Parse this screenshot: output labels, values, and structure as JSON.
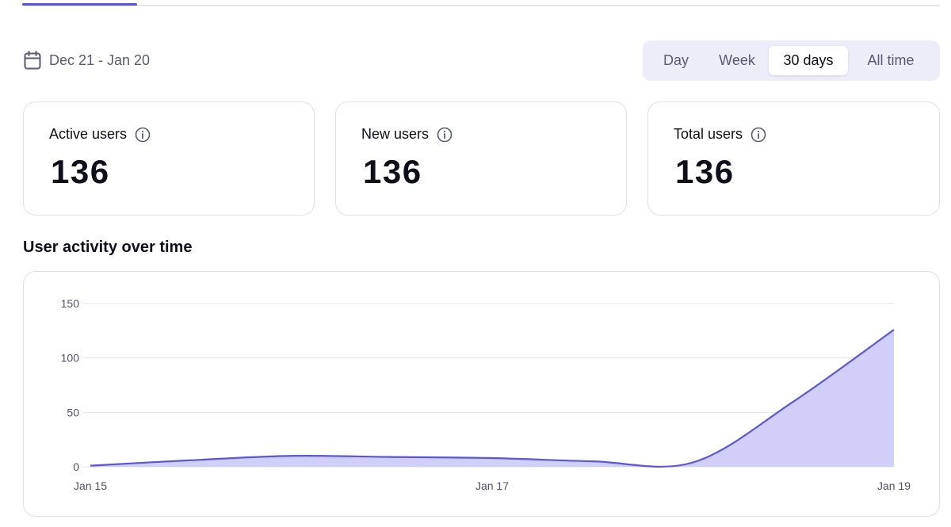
{
  "colors": {
    "accent": "#5b56d6",
    "area_fill": "#cfcffa",
    "gridline": "#e3e3ee",
    "card_border": "#e0e0ea"
  },
  "date_range": {
    "icon": "calendar-icon",
    "label": "Dec 21 - Jan 20"
  },
  "range_selector": {
    "options": [
      "Day",
      "Week",
      "30 days",
      "All time"
    ],
    "selected": "30 days"
  },
  "stats": [
    {
      "label": "Active users",
      "value": "136",
      "icon": "info-icon"
    },
    {
      "label": "New users",
      "value": "136",
      "icon": "info-icon"
    },
    {
      "label": "Total users",
      "value": "136",
      "icon": "info-icon"
    }
  ],
  "chart_section": {
    "title": "User activity over time"
  },
  "chart_data": {
    "type": "area",
    "title": "User activity over time",
    "xlabel": "",
    "ylabel": "",
    "x": [
      0,
      1,
      2,
      3,
      4,
      5,
      6,
      7,
      8
    ],
    "values": [
      1,
      6,
      10,
      9,
      8,
      5,
      4,
      60,
      126
    ],
    "x_ticks": [
      {
        "pos": 0,
        "label": "Jan 15"
      },
      {
        "pos": 4,
        "label": "Jan 17"
      },
      {
        "pos": 8,
        "label": "Jan 19"
      }
    ],
    "ylim": [
      0,
      150
    ],
    "y_ticks": [
      0,
      50,
      100,
      150
    ],
    "grid": true,
    "legend": "none"
  }
}
